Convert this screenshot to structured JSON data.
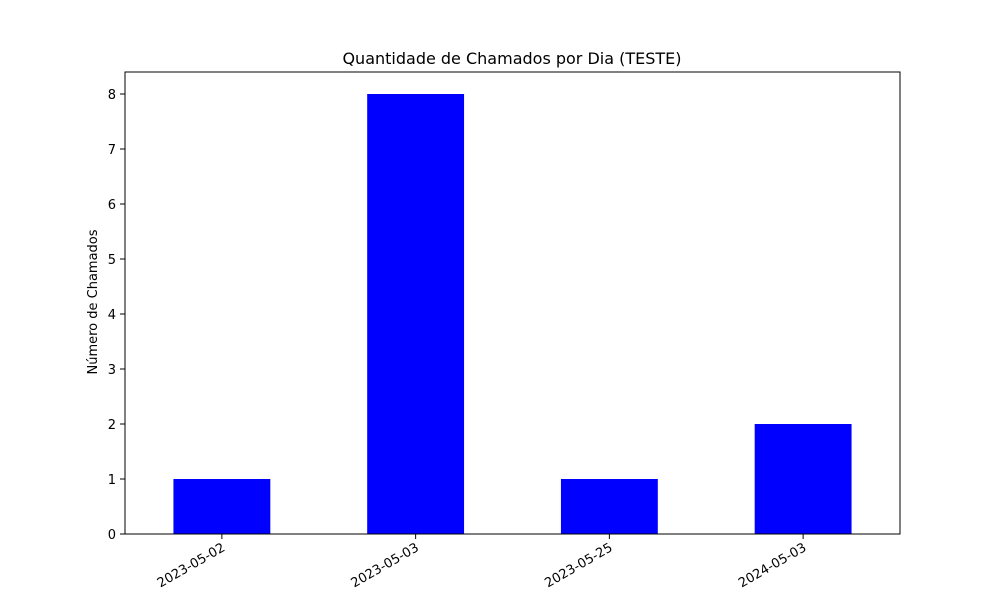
{
  "chart_data": {
    "type": "bar",
    "title": "Quantidade de Chamados por Dia (TESTE)",
    "xlabel": "",
    "ylabel": "Número de Chamados",
    "categories": [
      "2023-05-02",
      "2023-05-03",
      "2023-05-25",
      "2024-05-03"
    ],
    "values": [
      1,
      8,
      1,
      2
    ],
    "ylim": [
      0,
      8.4
    ],
    "yticks": [
      0,
      1,
      2,
      3,
      4,
      5,
      6,
      7,
      8
    ],
    "grid": false,
    "legend": "none",
    "bar_color": "#0000ff",
    "xtick_rotation_deg": 30
  }
}
